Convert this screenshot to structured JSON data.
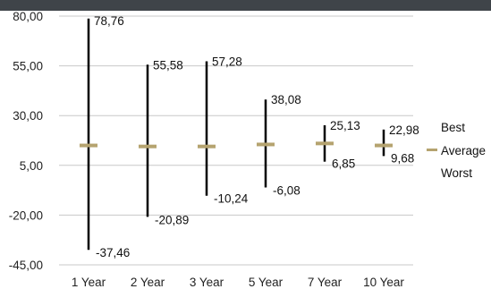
{
  "colors": {
    "top_bar": "#3f4449",
    "range_line": "#000000",
    "average_marker": "#b5a36f",
    "gridline": "#c8c8c8"
  },
  "chart_data": {
    "type": "stock",
    "title": "",
    "xlabel": "",
    "ylabel": "",
    "categories": [
      "1 Year",
      "2 Year",
      "3 Year",
      "5 Year",
      "7 Year",
      "10 Year"
    ],
    "series": [
      {
        "name": "Best",
        "values": [
          78.76,
          55.58,
          57.28,
          38.08,
          25.13,
          22.98
        ]
      },
      {
        "name": "Average",
        "values": [
          15.0,
          14.5,
          14.5,
          15.5,
          16.0,
          15.0
        ]
      },
      {
        "name": "Worst",
        "values": [
          -37.46,
          -20.89,
          -10.24,
          -6.08,
          6.85,
          9.68
        ]
      }
    ],
    "y_ticks": [
      "80,00",
      "55,00",
      "30,00",
      "5,00",
      "-20,00",
      "-45,00"
    ],
    "y_tick_values": [
      80,
      55,
      30,
      5,
      -20,
      -45
    ],
    "ylim": [
      -45,
      80
    ],
    "grid": true,
    "legend_position": "right",
    "data_labels": {
      "best": [
        "78,76",
        "55,58",
        "57,28",
        "38,08",
        "25,13",
        "22,98"
      ],
      "worst": [
        "-37,46",
        "-20,89",
        "-10,24",
        "-6,08",
        "6,85",
        "9,68"
      ]
    }
  }
}
